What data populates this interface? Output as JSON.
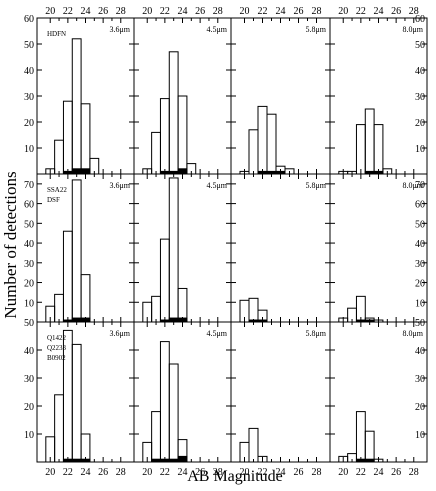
{
  "chart_data": {
    "type": "bar",
    "grid_layout": "3 rows x 4 columns of histogram panels",
    "xlabel": "AB Magnitude",
    "ylabel": "Number of detections",
    "x_ticks": [
      20,
      22,
      24,
      26,
      28
    ],
    "xlim": [
      18.5,
      29.5
    ],
    "bin_width": 1,
    "bin_centers": [
      20,
      21,
      22,
      23,
      24,
      25
    ],
    "rows": [
      {
        "field_label": [
          "HDFN"
        ],
        "ylim": [
          0,
          60
        ],
        "y_ticks": [
          10,
          20,
          30,
          40,
          50,
          60
        ],
        "panels": [
          {
            "band": "3.6μm",
            "open_values": [
              2,
              13,
              28,
              52,
              27,
              6
            ],
            "filled_values": [
              0,
              0,
              1,
              2,
              2,
              0
            ]
          },
          {
            "band": "4.5μm",
            "open_values": [
              2,
              16,
              29,
              47,
              30,
              4
            ],
            "filled_values": [
              0,
              0,
              1,
              1,
              2,
              0
            ]
          },
          {
            "band": "5.8μm",
            "open_values": [
              1,
              17,
              26,
              23,
              3,
              2
            ],
            "filled_values": [
              0,
              0,
              1,
              1,
              1,
              0
            ]
          },
          {
            "band": "8.0μm",
            "open_values": [
              1,
              1,
              19,
              25,
              19,
              2
            ],
            "filled_values": [
              0,
              0,
              0,
              1,
              1,
              0
            ]
          }
        ]
      },
      {
        "field_label": [
          "SSA22",
          "DSF"
        ],
        "ylim": [
          0,
          75
        ],
        "y_ticks": [
          10,
          20,
          30,
          40,
          50,
          60,
          70
        ],
        "panels": [
          {
            "band": "3.6μm",
            "open_values": [
              8,
              14,
              46,
              72,
              24,
              0
            ],
            "filled_values": [
              0,
              0,
              1,
              2,
              2,
              0
            ]
          },
          {
            "band": "4.5μm",
            "open_values": [
              10,
              13,
              42,
              73,
              17,
              0
            ],
            "filled_values": [
              0,
              0,
              1,
              2,
              2,
              0
            ]
          },
          {
            "band": "5.8μm",
            "open_values": [
              11,
              12,
              6,
              0,
              0,
              0
            ],
            "filled_values": [
              0,
              1,
              1,
              0,
              0,
              0
            ]
          },
          {
            "band": "8.0μm",
            "open_values": [
              2,
              7,
              13,
              2,
              1,
              0
            ],
            "filled_values": [
              0,
              0,
              1,
              1,
              0,
              0
            ]
          }
        ]
      },
      {
        "field_label": [
          "Q1422",
          "Q2233",
          "B0902"
        ],
        "ylim": [
          0,
          50
        ],
        "y_ticks": [
          10,
          20,
          30,
          40,
          50
        ],
        "panels": [
          {
            "band": "3.6μm",
            "open_values": [
              9,
              24,
              47,
              42,
              10,
              0
            ],
            "filled_values": [
              0,
              0,
              1,
              1,
              1,
              0
            ]
          },
          {
            "band": "4.5μm",
            "open_values": [
              7,
              18,
              43,
              35,
              8,
              0
            ],
            "filled_values": [
              0,
              1,
              1,
              1,
              2,
              0
            ]
          },
          {
            "band": "5.8μm",
            "open_values": [
              7,
              12,
              2,
              0,
              0,
              0
            ],
            "filled_values": [
              0,
              0,
              0,
              0,
              0,
              0
            ]
          },
          {
            "band": "8.0μm",
            "open_values": [
              2,
              3,
              18,
              11,
              1,
              0
            ],
            "filled_values": [
              0,
              0,
              1,
              1,
              0,
              0
            ]
          }
        ]
      }
    ]
  }
}
